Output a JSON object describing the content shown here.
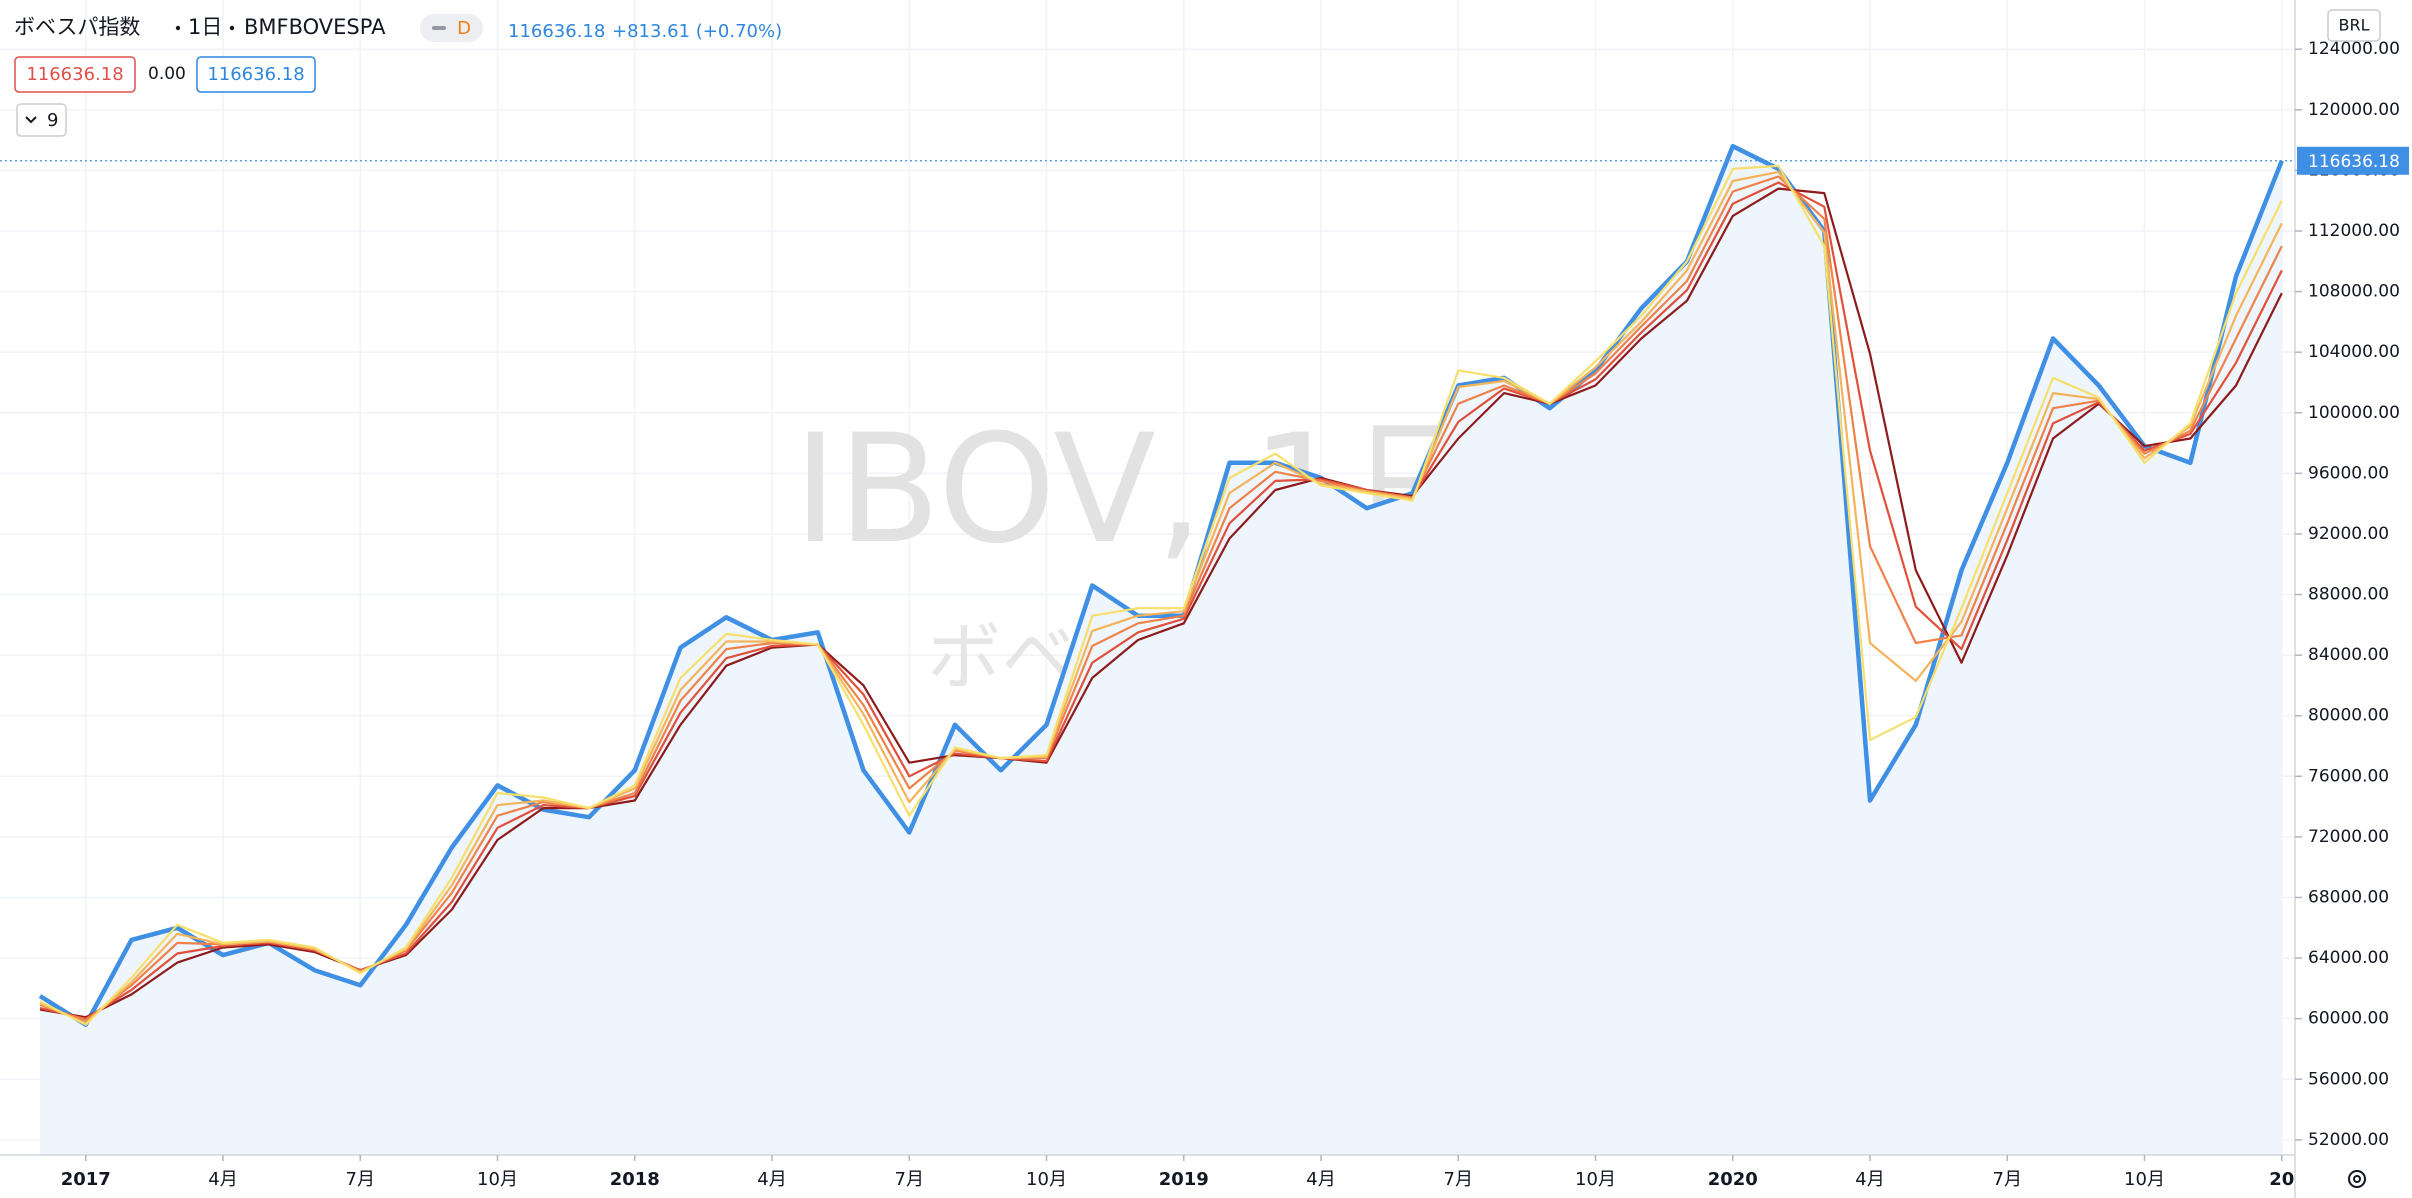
{
  "chart_data": {
    "type": "line",
    "title": "ボベスパ指数",
    "interval": "1日",
    "exchange": "BMFBOVESPA",
    "resolution_badge": "D",
    "price_change": "+813.61 (+0.70%)",
    "indicator_values": [
      116636.18,
      "0.00",
      116636.18
    ],
    "indicator_length": 9,
    "currency": "BRL",
    "watermark": [
      "IBOV, 1日",
      "ボベスパ指数"
    ],
    "categories": [
      null,
      "2017",
      null,
      null,
      "4月",
      null,
      null,
      "7月",
      null,
      null,
      "10月",
      null,
      null,
      "2018",
      null,
      null,
      "4月",
      null,
      null,
      "7月",
      null,
      null,
      "10月",
      null,
      null,
      "2019",
      null,
      null,
      "4月",
      null,
      null,
      "7月",
      null,
      null,
      "10月",
      null,
      null,
      "2020",
      null,
      null,
      "4月",
      null,
      null,
      "7月",
      null,
      null,
      "10月",
      null,
      null,
      "20"
    ],
    "series": [
      {
        "color": "#3f8fe4",
        "values": [
          61500,
          59600,
          65200,
          66000,
          64200,
          65000,
          63200,
          62200,
          66200,
          71300,
          75400,
          73800,
          73300,
          76400,
          84500,
          86500,
          85000,
          85500,
          76400,
          72300,
          79400,
          76400,
          79400,
          88600,
          86600,
          86600,
          96700,
          96700,
          95700,
          93700,
          94700,
          101800,
          102300,
          100300,
          102800,
          106900,
          110000,
          117600,
          116100,
          112000,
          74400,
          79400,
          89600,
          96700,
          104900,
          101800,
          97800,
          96700,
          109000,
          116636.18
        ]
      },
      {
        "color": "#8e1b1b",
        "values": [
          60600,
          60100,
          61600,
          63700,
          64700,
          64900,
          64400,
          63200,
          64200,
          67200,
          71800,
          73900,
          73900,
          74400,
          79400,
          83300,
          84500,
          84700,
          82000,
          76900,
          77400,
          77200,
          76900,
          82500,
          85000,
          86100,
          91700,
          94900,
          95700,
          94900,
          94500,
          98300,
          101300,
          100600,
          101800,
          104900,
          107400,
          113000,
          114800,
          114500,
          103900,
          89600,
          83500,
          90600,
          98300,
          100600,
          97800,
          98300,
          101800,
          107900
        ]
      },
      {
        "color": "#e0503a",
        "values": [
          60700,
          60000,
          61900,
          64300,
          64800,
          65000,
          64500,
          63200,
          64300,
          67700,
          72600,
          74100,
          73900,
          74700,
          80200,
          83800,
          84600,
          84700,
          81400,
          76000,
          77500,
          77200,
          77000,
          83500,
          85500,
          86400,
          92700,
          95500,
          95600,
          94900,
          94400,
          99400,
          101600,
          100600,
          102200,
          105300,
          108100,
          113800,
          115200,
          113600,
          97500,
          87200,
          84400,
          91600,
          99300,
          100700,
          97500,
          98600,
          103300,
          109400
        ]
      },
      {
        "color": "#ef8249",
        "values": [
          60900,
          59900,
          62200,
          65000,
          64900,
          65100,
          64600,
          63100,
          64500,
          68300,
          73400,
          74300,
          73900,
          74900,
          81000,
          84400,
          84800,
          84700,
          80700,
          75200,
          77700,
          77200,
          77200,
          84600,
          86100,
          86600,
          93700,
          96100,
          95500,
          94800,
          94400,
          100600,
          101800,
          100600,
          102600,
          105700,
          108700,
          114600,
          115600,
          112800,
          91200,
          84800,
          85300,
          92700,
          100300,
          100800,
          97300,
          98800,
          104900,
          111000
        ]
      },
      {
        "color": "#f5b35a",
        "values": [
          61000,
          59700,
          62400,
          65600,
          64900,
          65100,
          64600,
          63100,
          64600,
          68800,
          74100,
          74400,
          73900,
          75200,
          81700,
          84900,
          84900,
          84700,
          80100,
          74300,
          77800,
          77200,
          77300,
          85600,
          86600,
          86900,
          94700,
          96700,
          95300,
          94800,
          94300,
          101700,
          102100,
          100600,
          103000,
          106000,
          109400,
          115300,
          115900,
          111900,
          84800,
          82300,
          86200,
          93700,
          101300,
          100900,
          97000,
          99100,
          106400,
          112500
        ]
      },
      {
        "color": "#f6df6a",
        "values": [
          61150,
          59600,
          62700,
          66200,
          65000,
          65200,
          64700,
          63000,
          64700,
          69300,
          74900,
          74600,
          73900,
          75400,
          82500,
          85400,
          85000,
          84700,
          79400,
          73400,
          77900,
          77200,
          77400,
          86600,
          87100,
          87100,
          95700,
          97300,
          95200,
          94700,
          94200,
          102800,
          102300,
          100600,
          103400,
          106400,
          110000,
          116100,
          116300,
          111000,
          78400,
          79900,
          87100,
          94700,
          102300,
          101000,
          96700,
          99300,
          107900,
          114000
        ]
      }
    ],
    "area_fill": "#eef5fd",
    "ylim": [
      51000,
      127250
    ],
    "yticks": [
      {
        "value": 52000,
        "label": "52000.00"
      },
      {
        "value": 56000,
        "label": "56000.00"
      },
      {
        "value": 60000,
        "label": "60000.00"
      },
      {
        "value": 64000,
        "label": "64000.00"
      },
      {
        "value": 68000,
        "label": "68000.00"
      },
      {
        "value": 72000,
        "label": "72000.00"
      },
      {
        "value": 76000,
        "label": "76000.00"
      },
      {
        "value": 80000,
        "label": "80000.00"
      },
      {
        "value": 84000,
        "label": "84000.00"
      },
      {
        "value": 88000,
        "label": "88000.00"
      },
      {
        "value": 92000,
        "label": "92000.00"
      },
      {
        "value": 96000,
        "label": "96000.00"
      },
      {
        "value": 100000,
        "label": "100000.00"
      },
      {
        "value": 104000,
        "label": "104000.00"
      },
      {
        "value": 108000,
        "label": "108000.00"
      },
      {
        "value": 112000,
        "label": "112000.00"
      },
      {
        "value": 116000,
        "label": "116000.00"
      },
      {
        "value": 120000,
        "label": "120000.00"
      },
      {
        "value": 124000,
        "label": "124000.00"
      }
    ],
    "grid": true
  }
}
